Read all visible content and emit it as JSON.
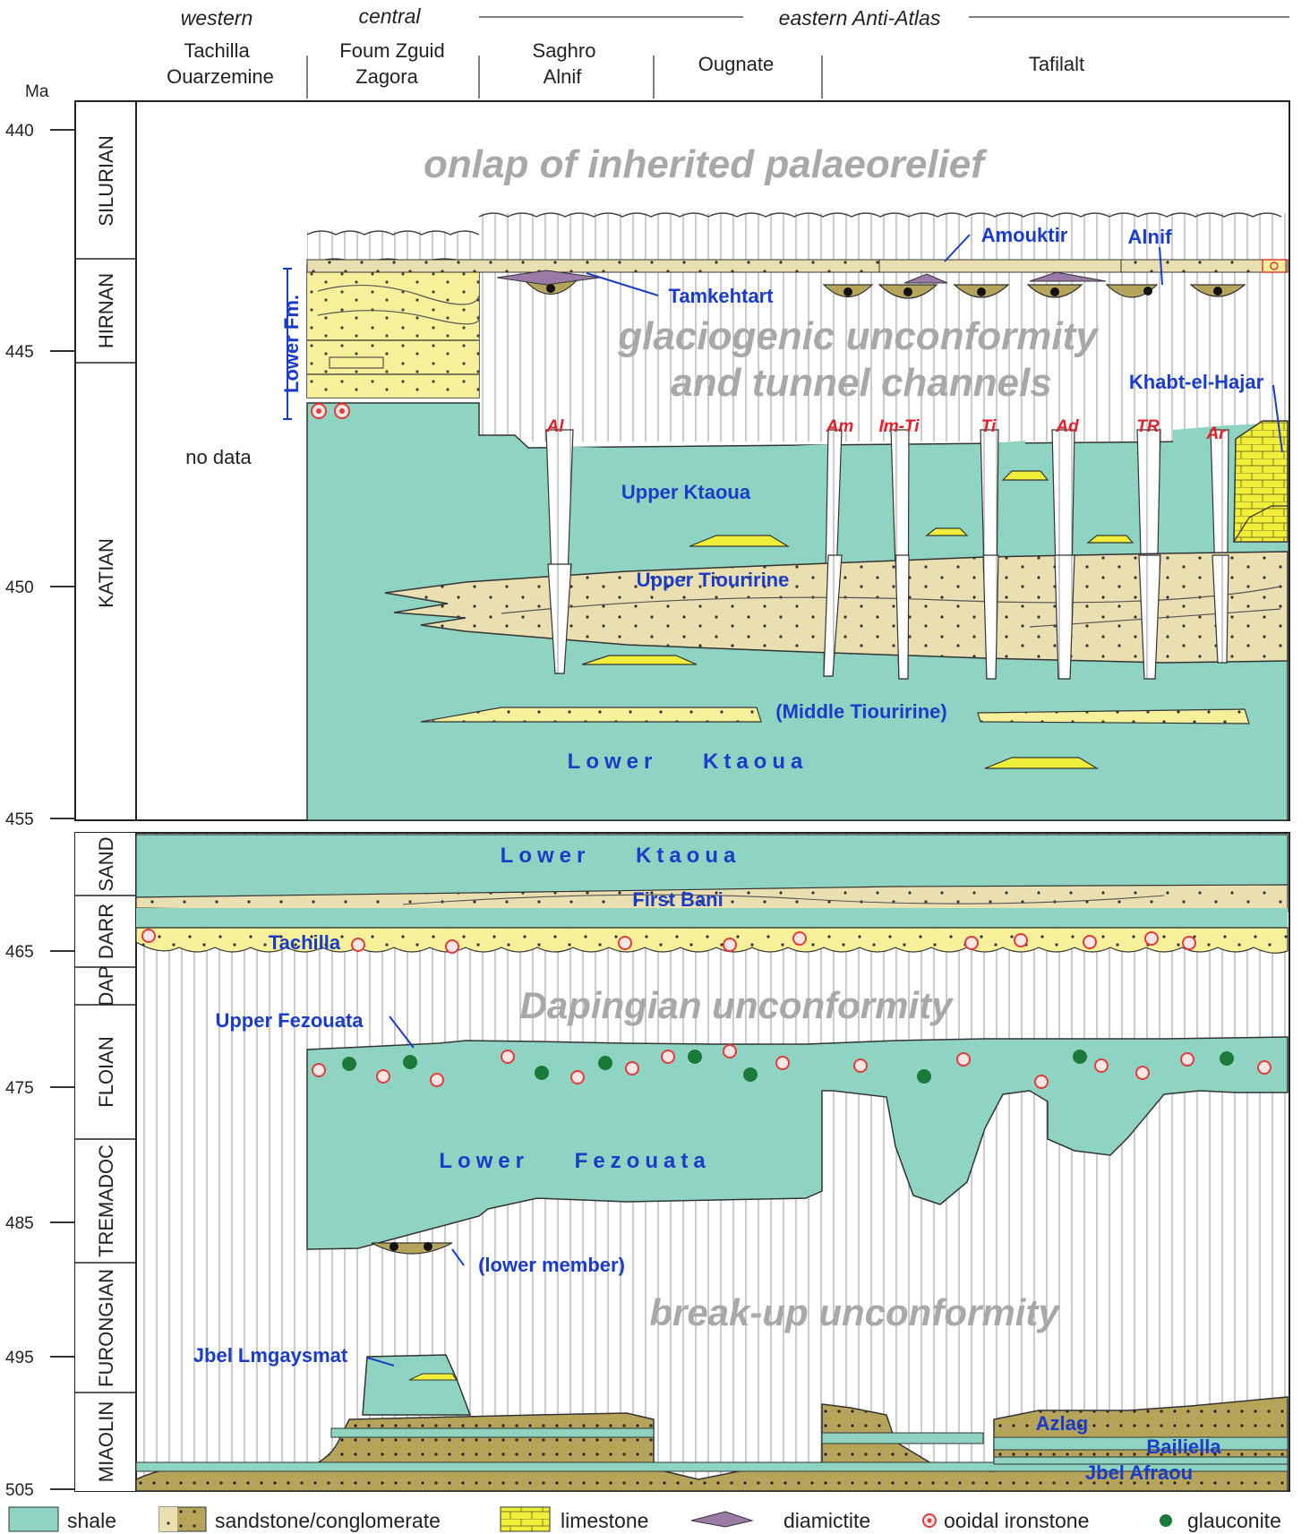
{
  "header": {
    "regions": {
      "western": "western",
      "central": "central",
      "eastern": "eastern Anti-Atlas"
    },
    "columns": [
      {
        "line1": "Tachilla",
        "line2": "Ouarzemine"
      },
      {
        "line1": "Foum Zguid",
        "line2": "Zagora"
      },
      {
        "line1": "Saghro",
        "line2": "Alnif"
      },
      {
        "line1": "Ougnate",
        "line2": ""
      },
      {
        "line1": "Tafilalt",
        "line2": ""
      }
    ]
  },
  "axis": {
    "unit": "Ma",
    "ticks_upper": [
      "440",
      "445",
      "450",
      "455"
    ],
    "ticks_lower": [
      "465",
      "475",
      "485",
      "495",
      "505"
    ]
  },
  "stages_upper": [
    "SILURIAN",
    "HIRNAN",
    "KATIAN"
  ],
  "stages_lower": [
    "SAND",
    "DARR",
    "DAP",
    "FLOIAN",
    "TREMADOC",
    "FURONGIAN",
    "MIAOLIN"
  ],
  "labels": {
    "onlap": "onlap of inherited palaeorelief",
    "glacio1": "glaciogenic unconformity",
    "glacio2": "and tunnel channels",
    "no_data": "no data",
    "lower_fm": "Lower Fm.",
    "amouktir": "Amouktir",
    "alnif": "Alnif",
    "tamkehtart": "Tamkehtart",
    "khabt": "Khabt-el-Hajar",
    "upper_ktaoua": "Upper Ktaoua",
    "upper_tiouririne": "Upper Tiouririne",
    "middle_tiouririne": "(Middle Tiouririne)",
    "lower_ktaoua_1": "Lower    Ktaoua",
    "lower_ktaoua_2": "Lower    Ktaoua",
    "first_bani": "First Bani",
    "tachilla": "Tachilla",
    "dapingian": "Dapingian unconformity",
    "upper_fezouata": "Upper Fezouata",
    "lower_fezouata": "Lower    Fezouata",
    "lower_member": "(lower member)",
    "breakup": "break-up unconformity",
    "jbel_lmgaysmat": "Jbel Lmgaysmat",
    "azlag": "Azlag",
    "bailiella": "Bailiella",
    "jbel_afraou": "Jbel Afraou"
  },
  "channels": [
    "Al",
    "Am",
    "Im-Ti",
    "Ti",
    "Ad",
    "TR",
    "Ar"
  ],
  "legend": [
    "shale",
    "sandstone/conglomerate",
    "limestone",
    "diamictite",
    "ooidal ironstone",
    "glauconite"
  ],
  "colors": {
    "shale": "#8fd4c2",
    "sandstone": "#e9dfb0",
    "sandstone_yellow": "#f5f099",
    "conglomerate": "#b5a45a",
    "limestone": "#f2ef3a",
    "diamictite": "#9a7aa6",
    "ironstone": "#e33b3b",
    "glauconite": "#1a7a3a",
    "label_blue": "#1a3cc8",
    "channel_red": "#e0202a",
    "unconformity_grey": "#a8a8a8"
  }
}
